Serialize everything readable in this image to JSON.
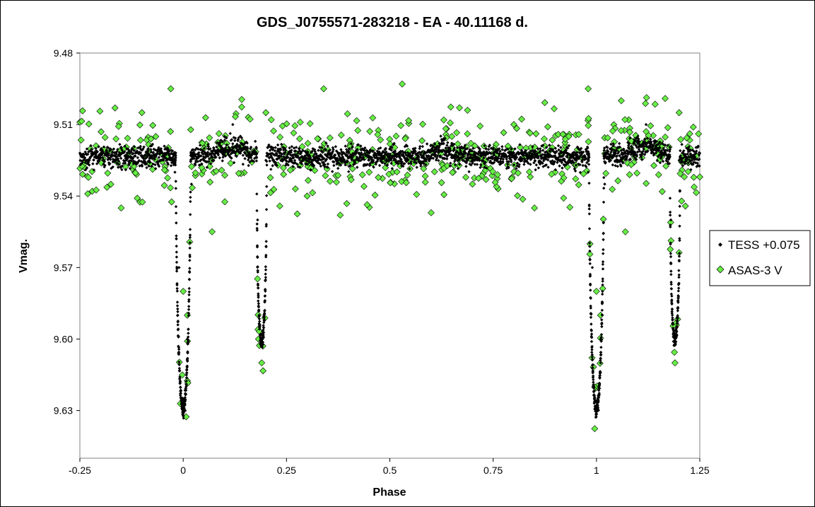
{
  "chart_data": {
    "type": "scatter",
    "title": "GDS_J0755571-283218  - EA - 40.11168 d.",
    "xlabel": "Phase",
    "ylabel": "Vmag.",
    "xlim": [
      -0.25,
      1.25
    ],
    "ylim": [
      9.48,
      9.65
    ],
    "y_inverted": true,
    "x_ticks": [
      "-0.25",
      "0",
      "0.25",
      "0.5",
      "0.75",
      "1",
      "1.25"
    ],
    "y_ticks": [
      "9.48",
      "9.51",
      "9.54",
      "9.57",
      "9.60",
      "9.63"
    ],
    "grid": false,
    "legend_position": "right",
    "model": {
      "baseline_mag": 9.5235,
      "primary_eclipse": {
        "center_phases": [
          0.0,
          1.0
        ],
        "depth_mag": 9.63,
        "half_width_phase": 0.018
      },
      "secondary_eclipse": {
        "center_phases": [
          0.19,
          1.19
        ],
        "depth_mag": 9.601,
        "half_width_phase": 0.012
      }
    },
    "series": [
      {
        "name": "TESS +0.075",
        "marker": "diamond-small",
        "color": "#000000",
        "sampled_points": [
          [
            -0.25,
            9.522
          ],
          [
            -0.2,
            9.524
          ],
          [
            -0.15,
            9.52
          ],
          [
            -0.1,
            9.523
          ],
          [
            -0.05,
            9.522
          ],
          [
            -0.02,
            9.53
          ],
          [
            -0.01,
            9.57
          ],
          [
            0.0,
            9.625
          ],
          [
            0.005,
            9.63
          ],
          [
            0.01,
            9.6
          ],
          [
            0.02,
            9.535
          ],
          [
            0.05,
            9.525
          ],
          [
            0.1,
            9.515
          ],
          [
            0.12,
            9.51
          ],
          [
            0.15,
            9.52
          ],
          [
            0.18,
            9.55
          ],
          [
            0.19,
            9.6
          ],
          [
            0.2,
            9.525
          ],
          [
            0.25,
            9.524
          ],
          [
            0.3,
            9.522
          ],
          [
            0.35,
            9.528
          ],
          [
            0.4,
            9.524
          ],
          [
            0.45,
            9.522
          ],
          [
            0.5,
            9.524
          ],
          [
            0.55,
            9.524
          ],
          [
            0.6,
            9.524
          ],
          [
            0.63,
            9.516
          ],
          [
            0.7,
            9.525
          ],
          [
            0.75,
            9.522
          ],
          [
            0.8,
            9.522
          ],
          [
            0.85,
            9.524
          ],
          [
            0.9,
            9.522
          ],
          [
            0.95,
            9.524
          ],
          [
            0.98,
            9.53
          ],
          [
            0.99,
            9.57
          ],
          [
            1.0,
            9.628
          ],
          [
            1.01,
            9.6
          ],
          [
            1.02,
            9.535
          ],
          [
            1.05,
            9.525
          ],
          [
            1.1,
            9.515
          ],
          [
            1.12,
            9.51
          ],
          [
            1.15,
            9.52
          ],
          [
            1.18,
            9.55
          ],
          [
            1.19,
            9.6
          ],
          [
            1.2,
            9.525
          ],
          [
            1.25,
            9.522
          ]
        ]
      },
      {
        "name": "ASAS-3 V",
        "marker": "diamond",
        "color": "#66ee44",
        "sampled_points": [
          [
            -0.25,
            9.509
          ],
          [
            -0.22,
            9.538
          ],
          [
            -0.15,
            9.545
          ],
          [
            -0.1,
            9.505
          ],
          [
            -0.03,
            9.495
          ],
          [
            0.0,
            9.58
          ],
          [
            0.01,
            9.59
          ],
          [
            0.05,
            9.52
          ],
          [
            0.07,
            9.555
          ],
          [
            0.12,
            9.52
          ],
          [
            0.19,
            9.61
          ],
          [
            0.2,
            9.505
          ],
          [
            0.3,
            9.54
          ],
          [
            0.34,
            9.495
          ],
          [
            0.38,
            9.548
          ],
          [
            0.45,
            9.53
          ],
          [
            0.53,
            9.493
          ],
          [
            0.6,
            9.547
          ],
          [
            0.65,
            9.515
          ],
          [
            0.7,
            9.535
          ],
          [
            0.8,
            9.51
          ],
          [
            0.85,
            9.545
          ],
          [
            0.9,
            9.53
          ],
          [
            0.98,
            9.495
          ],
          [
            1.0,
            9.58
          ],
          [
            1.01,
            9.59
          ],
          [
            1.06,
            9.5
          ],
          [
            1.07,
            9.555
          ],
          [
            1.12,
            9.52
          ],
          [
            1.19,
            9.61
          ],
          [
            1.2,
            9.505
          ],
          [
            1.25,
            9.532
          ]
        ]
      }
    ]
  }
}
